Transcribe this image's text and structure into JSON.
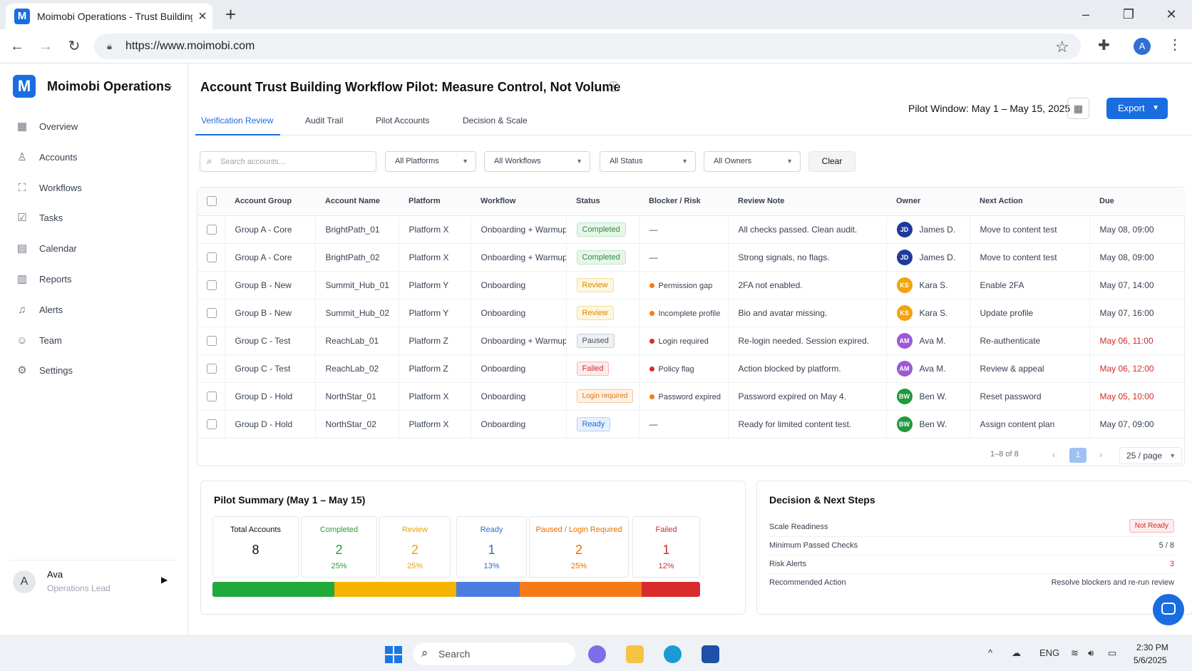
{
  "browser": {
    "tab_title": "Moimobi Operations - Trust Building",
    "url": "https://www.moimobi.com"
  },
  "sidebar": {
    "brand": "Moimobi Operations",
    "items": [
      {
        "label": "Overview",
        "icon": "grid-icon"
      },
      {
        "label": "Accounts",
        "icon": "user-icon"
      },
      {
        "label": "Workflows",
        "icon": "workflow-icon"
      },
      {
        "label": "Tasks",
        "icon": "checkbox-icon"
      },
      {
        "label": "Calendar",
        "icon": "calendar-icon"
      },
      {
        "label": "Reports",
        "icon": "bar-chart-icon"
      },
      {
        "label": "Alerts",
        "icon": "bell-icon"
      },
      {
        "label": "Team",
        "icon": "team-icon"
      },
      {
        "label": "Settings",
        "icon": "gear-icon"
      }
    ],
    "user": {
      "initial": "A",
      "name": "Ava",
      "role": "Operations Lead"
    }
  },
  "header": {
    "title": "Account Trust Building Workflow Pilot: Measure Control, Not Volume",
    "pilot_window": "Pilot Window: May 1 – May 15, 2025",
    "export_label": "Export",
    "tabs": [
      "Verification Review",
      "Audit Trail",
      "Pilot Accounts",
      "Decision & Scale"
    ]
  },
  "filters": {
    "search_placeholder": "Search accounts...",
    "platforms": "All Platforms",
    "workflows": "All Workflows",
    "status": "All Status",
    "owners": "All Owners",
    "clear_label": "Clear"
  },
  "table": {
    "columns": [
      "Account Group",
      "Account Name",
      "Platform",
      "Workflow",
      "Status",
      "Blocker / Risk",
      "Review Note",
      "Owner",
      "Next Action",
      "Due"
    ],
    "rows": [
      {
        "group": "Group A - Core",
        "name": "BrightPath_01",
        "platform": "Platform X",
        "workflow": "Onboarding + Warmup",
        "status": "Completed",
        "risk": "—",
        "note": "All checks passed. Clean audit.",
        "owner_initials": "JD",
        "owner": "James D.",
        "action": "Move to content test",
        "due": "May 08, 09:00"
      },
      {
        "group": "Group A - Core",
        "name": "BrightPath_02",
        "platform": "Platform X",
        "workflow": "Onboarding + Warmup",
        "status": "Completed",
        "risk": "—",
        "note": "Strong signals, no flags.",
        "owner_initials": "JD",
        "owner": "James D.",
        "action": "Move to content test",
        "due": "May 08, 09:00"
      },
      {
        "group": "Group B - New",
        "name": "Summit_Hub_01",
        "platform": "Platform Y",
        "workflow": "Onboarding",
        "status": "Review",
        "risk": "Permission gap",
        "note": "2FA not enabled.",
        "owner_initials": "KS",
        "owner": "Kara S.",
        "action": "Enable 2FA",
        "due": "May 07, 14:00"
      },
      {
        "group": "Group B - New",
        "name": "Summit_Hub_02",
        "platform": "Platform Y",
        "workflow": "Onboarding",
        "status": "Review",
        "risk": "Incomplete profile",
        "note": "Bio and avatar missing.",
        "owner_initials": "KS",
        "owner": "Kara S.",
        "action": "Update profile",
        "due": "May 07, 16:00"
      },
      {
        "group": "Group C - Test",
        "name": "ReachLab_01",
        "platform": "Platform Z",
        "workflow": "Onboarding + Warmup",
        "status": "Paused",
        "risk": "Login required",
        "note": "Re-login needed. Session expired.",
        "owner_initials": "AM",
        "owner": "Ava M.",
        "action": "Re-authenticate",
        "due": "May 06, 11:00"
      },
      {
        "group": "Group C - Test",
        "name": "ReachLab_02",
        "platform": "Platform Z",
        "workflow": "Onboarding",
        "status": "Failed",
        "risk": "Policy flag",
        "note": "Action blocked by platform.",
        "owner_initials": "AM",
        "owner": "Ava M.",
        "action": "Review & appeal",
        "due": "May 06, 12:00"
      },
      {
        "group": "Group D - Hold",
        "name": "NorthStar_01",
        "platform": "Platform X",
        "workflow": "Onboarding",
        "status": "Login required",
        "risk": "Password expired",
        "note": "Password expired on May 4.",
        "owner_initials": "BW",
        "owner": "Ben W.",
        "action": "Reset password",
        "due": "May 05, 10:00"
      },
      {
        "group": "Group D - Hold",
        "name": "NorthStar_02",
        "platform": "Platform X",
        "workflow": "Onboarding",
        "status": "Ready",
        "risk": "—",
        "note": "Ready for limited content test.",
        "owner_initials": "BW",
        "owner": "Ben W.",
        "action": "Assign content plan",
        "due": "May 07, 09:00"
      }
    ],
    "pagination": {
      "range": "1–8 of 8",
      "current_page": "1",
      "page_size": "25 / page"
    }
  },
  "summary": {
    "title": "Pilot Summary (May 1 – May 15)",
    "stats": [
      {
        "label": "Total Accounts",
        "value": "8",
        "pct": "",
        "color": "#374151"
      },
      {
        "label": "Completed",
        "value": "2",
        "pct": "25%",
        "color": "#2e9b3c"
      },
      {
        "label": "Review",
        "value": "2",
        "pct": "25%",
        "color": "#e8a400"
      },
      {
        "label": "Ready",
        "value": "1",
        "pct": "13%",
        "color": "#2f6fd6"
      },
      {
        "label": "Paused / Login Required",
        "value": "2",
        "pct": "25%",
        "color": "#e86f00"
      },
      {
        "label": "Failed",
        "value": "1",
        "pct": "12%",
        "color": "#d02b2b"
      }
    ],
    "bar_colors": [
      "#22a93c",
      "#f4b400",
      "#4a7de0",
      "#f47b16",
      "#d92b2b"
    ],
    "bar_fractions": [
      0.25,
      0.25,
      0.13,
      0.25,
      0.12
    ]
  },
  "decision": {
    "title": "Decision & Next Steps",
    "rows": [
      {
        "label": "Scale Readiness",
        "value": "Not Ready"
      },
      {
        "label": "Minimum Passed Checks",
        "value": "5 / 8"
      },
      {
        "label": "Risk Alerts",
        "value": "3"
      },
      {
        "label": "Recommended Action",
        "value": "Resolve blockers and re-run review"
      }
    ]
  },
  "taskbar": {
    "search": "Search",
    "lang": "ENG",
    "time": "2:30 PM",
    "date": "5/6/2025"
  }
}
